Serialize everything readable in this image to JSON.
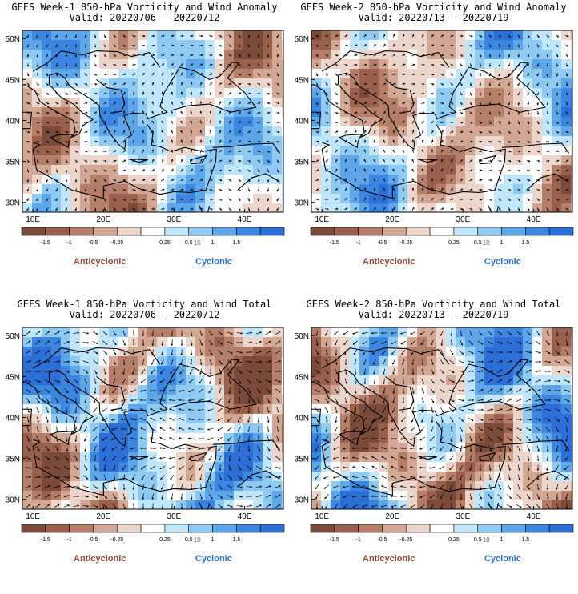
{
  "panels": [
    {
      "title": "GEFS Week-1 850-hPa Vorticity and Wind Anomaly",
      "valid": "Valid: 20220706 – 20220712",
      "kind": "anomaly"
    },
    {
      "title": "GEFS Week-2 850-hPa Vorticity and Wind Anomaly",
      "valid": "Valid: 20220713 – 20220719",
      "kind": "anomaly"
    },
    {
      "title": "GEFS Week-1 850-hPa Vorticity and Wind Total",
      "valid": "Valid: 20220706 – 20220712",
      "kind": "total"
    },
    {
      "title": "GEFS Week-2 850-hPa Vorticity and Wind Total",
      "valid": "Valid: 20220713 – 20220719",
      "kind": "total"
    }
  ],
  "map_axes": {
    "lat_labels": [
      "50N",
      "45N",
      "40N",
      "35N",
      "30N"
    ],
    "lon_labels": [
      "10E",
      "20E",
      "30E",
      "40E"
    ]
  },
  "colorbar": {
    "labels": [
      "-1.5",
      "-1",
      "-0.5",
      "-0.25",
      "0.25",
      "0.5",
      "1",
      "1.5"
    ],
    "scale_label": "10",
    "colors": [
      "#7a4a3a",
      "#99614d",
      "#b47e69",
      "#d2a895",
      "#ecd6cb",
      "#ffffff",
      "#bfe6fb",
      "#8fcaf2",
      "#5da6e9",
      "#3a86e0",
      "#2c6fd6"
    ]
  },
  "legend": {
    "anticyclonic": "Anticyclonic",
    "cyclonic": "Cyclonic"
  }
}
